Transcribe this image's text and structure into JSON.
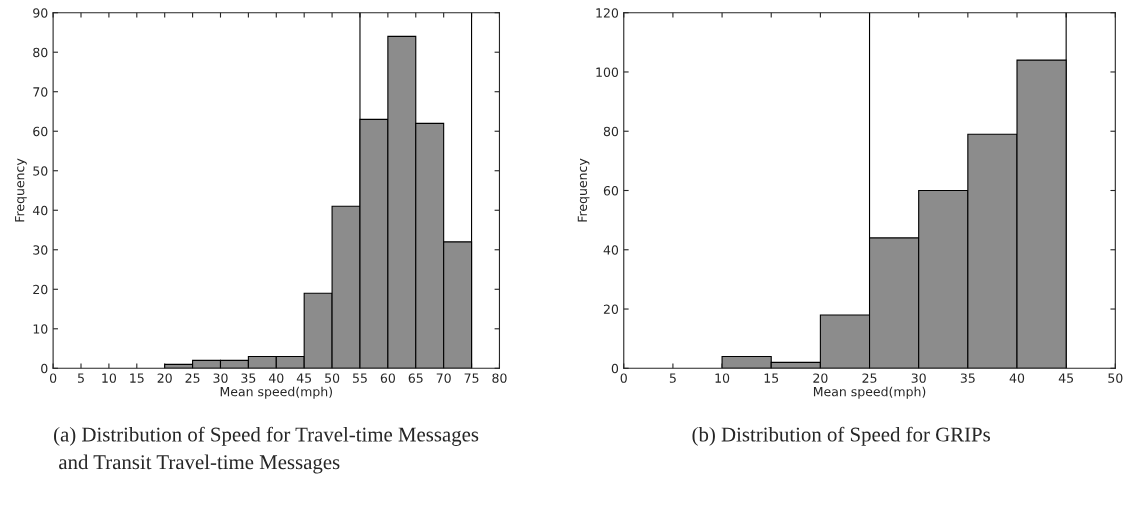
{
  "chart_data": [
    {
      "type": "histogram",
      "title": "(a) Distribution of Speed for Travel-time Messages\n and Transit Travel-time Messages",
      "xlabel": "Mean speed(mph)",
      "ylabel": "Frequency",
      "bins": [
        20,
        25,
        30,
        35,
        40,
        45,
        50,
        55,
        60,
        65,
        70,
        75
      ],
      "values": [
        1,
        2,
        2,
        3,
        3,
        19,
        41,
        63,
        84,
        62,
        32
      ],
      "color": "#8c8c8c",
      "xlim": [
        0,
        80
      ],
      "xticks": [
        0,
        5,
        10,
        15,
        20,
        25,
        30,
        35,
        40,
        45,
        50,
        55,
        60,
        65,
        70,
        75,
        80
      ],
      "ylim": [
        0,
        90
      ],
      "yticks": [
        0,
        10,
        20,
        30,
        40,
        50,
        60,
        70,
        80,
        90
      ],
      "ref_lines": [
        {
          "axis": "x",
          "value": 55,
          "color": "#000000"
        },
        {
          "axis": "x",
          "value": 75,
          "color": "#000000"
        }
      ],
      "grid": false,
      "legend": false
    },
    {
      "type": "histogram",
      "title": "(b) Distribution of Speed for GRIPs",
      "xlabel": "Mean speed(mph)",
      "ylabel": "Frequency",
      "bins": [
        10,
        15,
        20,
        25,
        30,
        35,
        40,
        45
      ],
      "values": [
        4,
        2,
        18,
        44,
        60,
        79,
        104
      ],
      "color": "#8c8c8c",
      "xlim": [
        0,
        50
      ],
      "xticks": [
        0,
        5,
        10,
        15,
        20,
        25,
        30,
        35,
        40,
        45,
        50
      ],
      "ylim": [
        0,
        120
      ],
      "yticks": [
        0,
        20,
        40,
        60,
        80,
        100,
        120
      ],
      "ref_lines": [
        {
          "axis": "x",
          "value": 25,
          "color": "#000000"
        },
        {
          "axis": "x",
          "value": 45,
          "color": "#000000"
        }
      ],
      "grid": false,
      "legend": false
    }
  ]
}
